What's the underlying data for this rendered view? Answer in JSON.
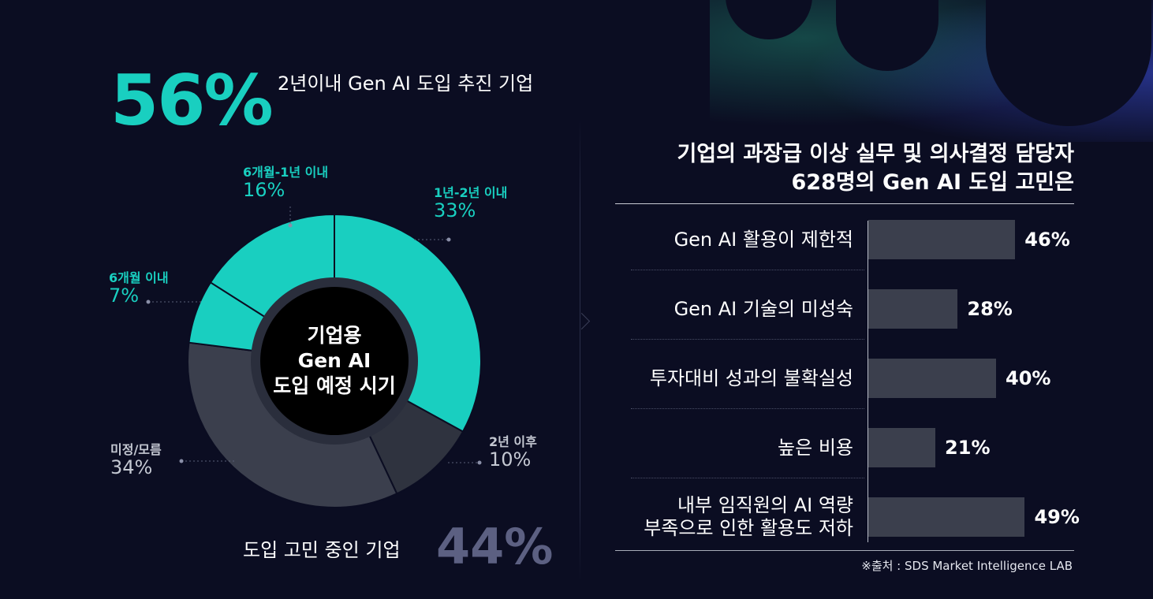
{
  "headline": {
    "top_pct": "56%",
    "top_label": "2년이내 Gen AI 도입 추진 기업",
    "bottom_pct": "44%",
    "bottom_label": "도입 고민 중인 기업"
  },
  "donut_center": [
    "기업용",
    "Gen AI",
    "도입 예정 시기"
  ],
  "right_title": [
    "기업의 과장급 이상 실무 및 의사결정 담당자",
    "628명의 Gen AI 도입 고민은"
  ],
  "source": "※출처 :  SDS Market Intelligence LAB",
  "colors": {
    "teal": "#19cfc0",
    "slate": "#3b3f4d",
    "dark_slate": "#2f333f",
    "background": "#0b0d22"
  },
  "chart_data": [
    {
      "type": "pie",
      "title": "기업용 Gen AI 도입 예정 시기",
      "slices": [
        {
          "label": "1년-2년 이내",
          "value": 33,
          "display": "33%",
          "color": "#19cfc0"
        },
        {
          "label": "2년 이후",
          "value": 10,
          "display": "10%",
          "color": "#2f333f"
        },
        {
          "label": "미정/모름",
          "value": 34,
          "display": "34%",
          "color": "#3b3f4d"
        },
        {
          "label": "6개월 이내",
          "value": 7,
          "display": "7%",
          "color": "#19cfc0"
        },
        {
          "label": "6개월-1년 이내",
          "value": 16,
          "display": "16%",
          "color": "#19cfc0"
        }
      ]
    },
    {
      "type": "bar",
      "orientation": "horizontal",
      "title": "기업의 과장급 이상 실무 및 의사결정 담당자 628명의 Gen AI 도입 고민은",
      "categories": [
        "Gen AI 활용이 제한적",
        "Gen AI 기술의 미성숙",
        "투자대비 성과의 불확실성",
        "높은 비용",
        "내부 임직원의 AI 역량\n부족으로 인한 활용도 저하"
      ],
      "values": [
        46,
        28,
        40,
        21,
        49
      ],
      "display": [
        "46%",
        "28%",
        "40%",
        "21%",
        "49%"
      ]
    }
  ]
}
